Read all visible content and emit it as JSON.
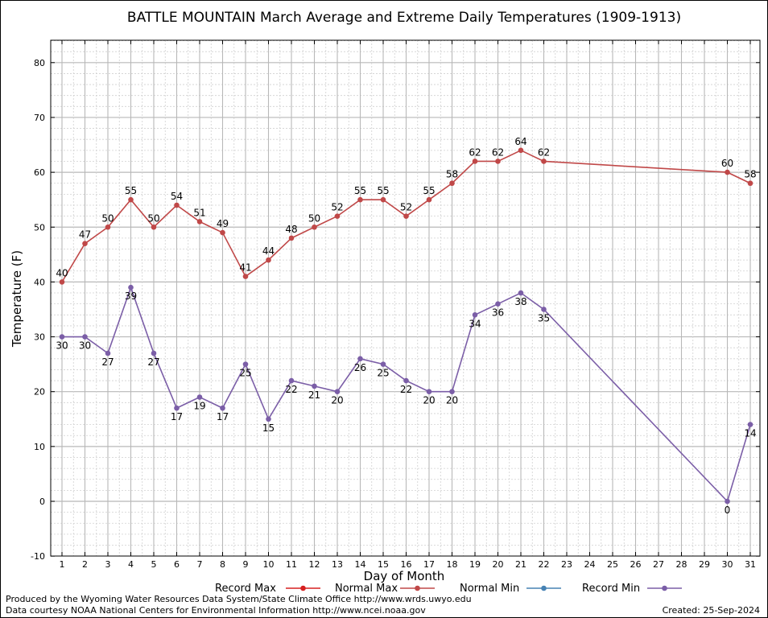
{
  "chart_data": {
    "type": "line",
    "title": "BATTLE MOUNTAIN March Average and Extreme Daily Temperatures (1909-1913)",
    "xlabel": "Day of Month",
    "ylabel": "Temperature (F)",
    "xlim": [
      1,
      31
    ],
    "ylim": [
      -10,
      84
    ],
    "yticks": [
      -10,
      0,
      10,
      20,
      30,
      40,
      50,
      60,
      70,
      80
    ],
    "xticks": [
      1,
      2,
      3,
      4,
      5,
      6,
      7,
      8,
      9,
      10,
      11,
      12,
      13,
      14,
      15,
      16,
      17,
      18,
      19,
      20,
      21,
      22,
      23,
      24,
      25,
      26,
      27,
      28,
      29,
      30,
      31
    ],
    "grid": true,
    "legend_position": "bottom",
    "series": [
      {
        "name": "Record Max",
        "color": "#d62020",
        "x": [],
        "values": []
      },
      {
        "name": "Normal Max",
        "color": "#c04848",
        "x": [
          1,
          2,
          3,
          4,
          5,
          6,
          7,
          8,
          9,
          10,
          11,
          12,
          13,
          14,
          15,
          16,
          17,
          18,
          19,
          20,
          21,
          22,
          30,
          31
        ],
        "values": [
          40,
          47,
          50,
          55,
          50,
          54,
          51,
          49,
          41,
          44,
          48,
          50,
          52,
          55,
          55,
          52,
          55,
          58,
          62,
          62,
          64,
          62,
          60,
          58
        ],
        "labels": [
          "40",
          "47",
          "50",
          "55",
          "50",
          "54",
          "51",
          "49",
          "41",
          "44",
          "48",
          "50",
          "52",
          "55",
          "55",
          "52",
          "55",
          "58",
          "62",
          "62",
          "64",
          "62",
          "60",
          "58"
        ]
      },
      {
        "name": "Normal Min",
        "color": "#4682b4",
        "x": [],
        "values": []
      },
      {
        "name": "Record Min",
        "color": "#7b5ea7",
        "x": [
          1,
          2,
          3,
          4,
          5,
          6,
          7,
          8,
          9,
          10,
          11,
          12,
          13,
          14,
          15,
          16,
          17,
          18,
          19,
          20,
          21,
          22,
          30,
          31
        ],
        "values": [
          30,
          30,
          27,
          39,
          27,
          17,
          19,
          17,
          25,
          15,
          22,
          21,
          20,
          26,
          25,
          22,
          20,
          20,
          34,
          36,
          38,
          35,
          0,
          14
        ],
        "labels": [
          "30",
          "30",
          "27",
          "39",
          "27",
          "17",
          "19",
          "17",
          "25",
          "15",
          "22",
          "21",
          "20",
          "26",
          "25",
          "22",
          "20",
          "20",
          "34",
          "36",
          "38",
          "35",
          "0",
          "14"
        ]
      }
    ]
  },
  "footer": {
    "produced_by": "Produced by the Wyoming Water Resources Data System/State Climate Office http://www.wrds.uwyo.edu",
    "data_courtesy": "Data courtesy NOAA National Centers for Environmental Information http://www.ncei.noaa.gov",
    "created": "Created:  25-Sep-2024"
  }
}
